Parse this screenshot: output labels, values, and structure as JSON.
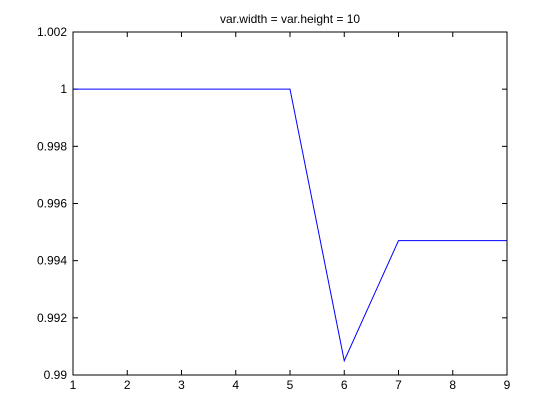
{
  "chart_data": {
    "type": "line",
    "title": "var.width  = var.height = 10",
    "xlabel": "",
    "ylabel": "",
    "xlim": [
      1,
      9
    ],
    "ylim": [
      0.99,
      1.002
    ],
    "x_ticks": [
      1,
      2,
      3,
      4,
      5,
      6,
      7,
      8,
      9
    ],
    "x_tick_labels": [
      "1",
      "2",
      "3",
      "4",
      "5",
      "6",
      "7",
      "8",
      "9"
    ],
    "y_ticks": [
      0.99,
      0.992,
      0.994,
      0.996,
      0.998,
      1.0,
      1.002
    ],
    "y_tick_labels": [
      "0.99",
      "0.992",
      "0.994",
      "0.996",
      "0.998",
      "1",
      "1.002"
    ],
    "grid": false,
    "legend": "none",
    "series": [
      {
        "color": "#0000ff",
        "x": [
          1,
          2,
          3,
          4,
          5,
          6,
          7,
          8,
          9
        ],
        "y": [
          1.0,
          1.0,
          1.0,
          1.0,
          1.0,
          0.9905,
          0.9947,
          0.9947,
          0.9947
        ]
      }
    ]
  }
}
